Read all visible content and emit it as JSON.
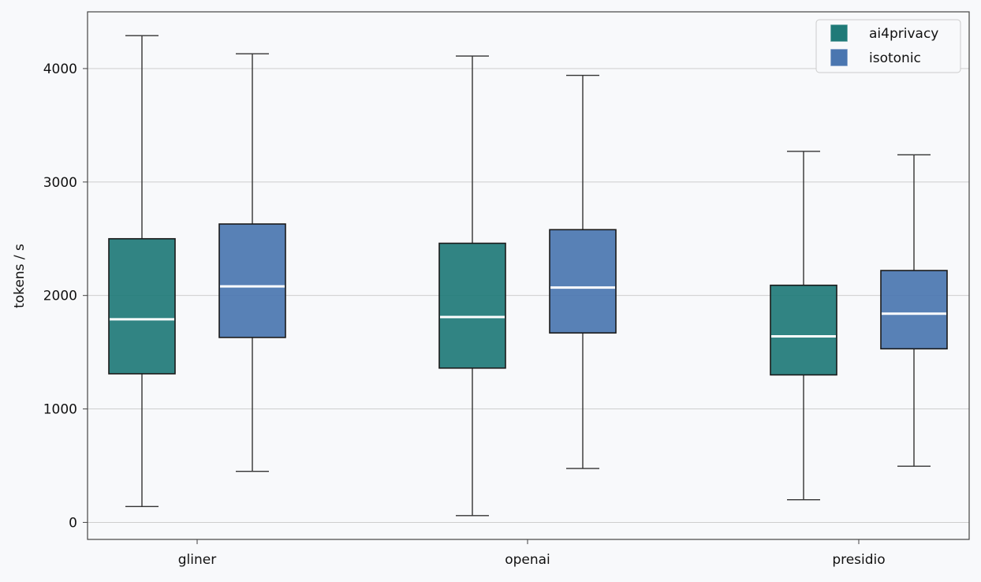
{
  "chart_data": {
    "type": "box",
    "ylabel": "tokens / s",
    "ylim": [
      -150,
      4500
    ],
    "yticks": [
      0,
      1000,
      2000,
      3000,
      4000
    ],
    "grid": "horizontal",
    "legend_position": "top-right",
    "categories": [
      "gliner",
      "openai",
      "presidio"
    ],
    "series": [
      {
        "name": "ai4privacy",
        "color": "#1f7a78",
        "boxes": [
          {
            "whisker_low": 140,
            "q1": 1310,
            "median": 1790,
            "q3": 2500,
            "whisker_high": 4290
          },
          {
            "whisker_low": 60,
            "q1": 1360,
            "median": 1810,
            "q3": 2460,
            "whisker_high": 4110
          },
          {
            "whisker_low": 200,
            "q1": 1300,
            "median": 1640,
            "q3": 2090,
            "whisker_high": 3270
          }
        ]
      },
      {
        "name": "isotonic",
        "color": "#4a76b0",
        "boxes": [
          {
            "whisker_low": 450,
            "q1": 1630,
            "median": 2080,
            "q3": 2630,
            "whisker_high": 4130
          },
          {
            "whisker_low": 475,
            "q1": 1670,
            "median": 2070,
            "q3": 2580,
            "whisker_high": 3940
          },
          {
            "whisker_low": 495,
            "q1": 1530,
            "median": 1840,
            "q3": 2220,
            "whisker_high": 3240
          }
        ]
      }
    ]
  }
}
